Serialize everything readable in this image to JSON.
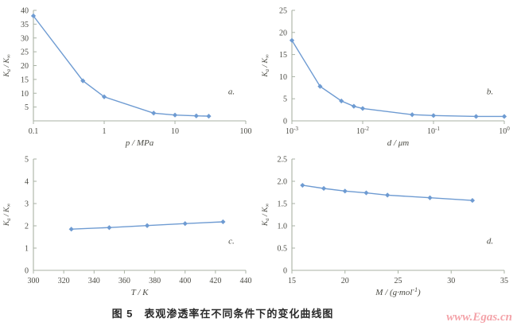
{
  "figure": {
    "caption": {
      "prefix": "图 5",
      "title": "表观渗透率在不同条件下的变化曲线图"
    },
    "watermark": "www.Egas.cn"
  },
  "colors": {
    "line": "#6e9bd2",
    "axis": "#a9b2a4",
    "text": "#4b4b44",
    "caption": "#2a2a2a",
    "watermark": "#f4a3a9"
  },
  "chart_data": [
    {
      "type": "line",
      "panel": "a.",
      "xlabel": "p / MPa",
      "ylabel": "K_a / K_∞",
      "xscale": "log",
      "xlim": [
        0.1,
        100
      ],
      "xticks": [
        {
          "v": 0.1,
          "label": "0.1"
        },
        {
          "v": 1,
          "label": "1"
        },
        {
          "v": 10,
          "label": "10"
        },
        {
          "v": 100,
          "label": "100"
        }
      ],
      "ylim": [
        0,
        40
      ],
      "yticks": [
        {
          "v": 5,
          "label": "5"
        },
        {
          "v": 10,
          "label": "10"
        },
        {
          "v": 15,
          "label": "15"
        },
        {
          "v": 20,
          "label": "20"
        },
        {
          "v": 25,
          "label": "25"
        },
        {
          "v": 30,
          "label": "30"
        },
        {
          "v": 35,
          "label": "35"
        },
        {
          "v": 40,
          "label": "40"
        }
      ],
      "x": [
        0.1,
        0.5,
        1,
        5,
        10,
        20,
        30
      ],
      "y": [
        38,
        14.5,
        8.7,
        2.8,
        2.1,
        1.8,
        1.7
      ],
      "grid": false,
      "legend": null
    },
    {
      "type": "line",
      "panel": "b.",
      "xlabel": "d / μm",
      "ylabel": "K_a / K_∞",
      "xscale": "log",
      "xlim": [
        0.001,
        1
      ],
      "xticks": [
        {
          "v": 0.001,
          "label": "10^{-3}"
        },
        {
          "v": 0.01,
          "label": "10^{-2}"
        },
        {
          "v": 0.1,
          "label": "10^{-1}"
        },
        {
          "v": 1,
          "label": "10^{0}"
        }
      ],
      "ylim": [
        0,
        25
      ],
      "yticks": [
        {
          "v": 0,
          "label": "0"
        },
        {
          "v": 5,
          "label": "5"
        },
        {
          "v": 10,
          "label": "10"
        },
        {
          "v": 15,
          "label": "15"
        },
        {
          "v": 20,
          "label": "20"
        },
        {
          "v": 25,
          "label": "25"
        }
      ],
      "x": [
        0.001,
        0.0025,
        0.005,
        0.0075,
        0.01,
        0.05,
        0.1,
        0.4,
        1
      ],
      "y": [
        18.2,
        7.8,
        4.5,
        3.3,
        2.8,
        1.4,
        1.2,
        1.0,
        1.0
      ],
      "grid": false,
      "legend": null
    },
    {
      "type": "line",
      "panel": "c.",
      "xlabel": "T / K",
      "ylabel": "K_a / K_∞",
      "xscale": "linear",
      "xlim": [
        300,
        440
      ],
      "xticks": [
        {
          "v": 300,
          "label": "300"
        },
        {
          "v": 320,
          "label": "320"
        },
        {
          "v": 340,
          "label": "340"
        },
        {
          "v": 360,
          "label": "360"
        },
        {
          "v": 380,
          "label": "380"
        },
        {
          "v": 400,
          "label": "400"
        },
        {
          "v": 420,
          "label": "420"
        },
        {
          "v": 440,
          "label": "440"
        }
      ],
      "ylim": [
        0,
        5
      ],
      "yticks": [
        {
          "v": 0,
          "label": "0"
        },
        {
          "v": 1,
          "label": "1"
        },
        {
          "v": 2,
          "label": "2"
        },
        {
          "v": 3,
          "label": "3"
        },
        {
          "v": 4,
          "label": "4"
        },
        {
          "v": 5,
          "label": "5"
        }
      ],
      "x": [
        325,
        350,
        375,
        400,
        425
      ],
      "y": [
        1.85,
        1.92,
        2.01,
        2.1,
        2.18
      ],
      "grid": false,
      "legend": null
    },
    {
      "type": "line",
      "panel": "d.",
      "xlabel": "M / (g·mol^{-1})",
      "ylabel": "K_a / K_∞",
      "xscale": "linear",
      "xlim": [
        15,
        35
      ],
      "xticks": [
        {
          "v": 15,
          "label": "15"
        },
        {
          "v": 20,
          "label": "20"
        },
        {
          "v": 25,
          "label": "25"
        },
        {
          "v": 30,
          "label": "30"
        },
        {
          "v": 35,
          "label": "35"
        }
      ],
      "ylim": [
        0,
        2.5
      ],
      "yticks": [
        {
          "v": 0,
          "label": "0"
        },
        {
          "v": 0.5,
          "label": "0.5"
        },
        {
          "v": 1,
          "label": "1.0"
        },
        {
          "v": 1.5,
          "label": "1.5"
        },
        {
          "v": 2,
          "label": "2.0"
        },
        {
          "v": 2.5,
          "label": "2.5"
        }
      ],
      "x": [
        16,
        18,
        20,
        22,
        24,
        28,
        32
      ],
      "y": [
        1.91,
        1.84,
        1.78,
        1.74,
        1.69,
        1.63,
        1.57
      ],
      "grid": false,
      "legend": null
    }
  ]
}
